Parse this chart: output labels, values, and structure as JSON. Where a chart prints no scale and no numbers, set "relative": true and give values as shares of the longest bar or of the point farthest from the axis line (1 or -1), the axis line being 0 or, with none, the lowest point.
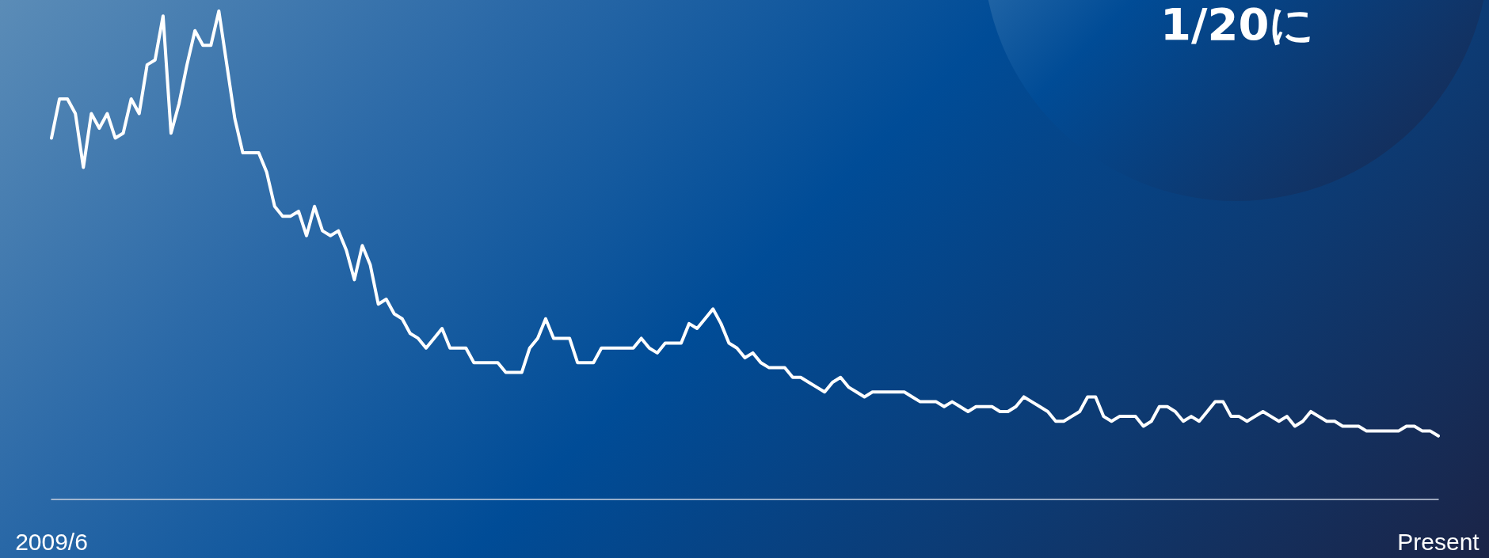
{
  "chart_data": {
    "type": "line",
    "relative": true,
    "annotations": [
      "1/20に"
    ],
    "categories": [
      "2009/6",
      null,
      null,
      null,
      null,
      null,
      null,
      null,
      null,
      null,
      null,
      null,
      null,
      null,
      null,
      null,
      null,
      null,
      null,
      null,
      null,
      null,
      null,
      null,
      null,
      null,
      null,
      null,
      null,
      null,
      null,
      null,
      null,
      null,
      null,
      null,
      null,
      null,
      null,
      null,
      null,
      null,
      null,
      null,
      null,
      null,
      null,
      null,
      null,
      null,
      null,
      null,
      null,
      null,
      null,
      null,
      null,
      null,
      null,
      null,
      null,
      null,
      null,
      null,
      null,
      null,
      null,
      null,
      null,
      null,
      null,
      null,
      null,
      null,
      null,
      null,
      null,
      null,
      null,
      null,
      null,
      null,
      null,
      null,
      null,
      null,
      null,
      null,
      null,
      null,
      null,
      null,
      null,
      null,
      null,
      null,
      null,
      null,
      null,
      null,
      null,
      null,
      null,
      null,
      null,
      null,
      null,
      null,
      null,
      null,
      null,
      null,
      null,
      null,
      null,
      null,
      null,
      null,
      null,
      null,
      null,
      null,
      null,
      null,
      null,
      null,
      null,
      null,
      null,
      null,
      null,
      null,
      null,
      null,
      null,
      null,
      null,
      null,
      null,
      null,
      null,
      null,
      null,
      null,
      null,
      null,
      null,
      null,
      null,
      null,
      null,
      null,
      null,
      null,
      null,
      null,
      null,
      null,
      null,
      null,
      null,
      null,
      null,
      null,
      null,
      null,
      null,
      null,
      null,
      null,
      null,
      null,
      null,
      null,
      "Present"
    ],
    "series": [
      {
        "color": "#ffffff",
        "values": [
          0.74,
          0.82,
          0.82,
          0.79,
          0.68,
          0.79,
          0.76,
          0.79,
          0.74,
          0.75,
          0.82,
          0.79,
          0.89,
          0.9,
          0.99,
          0.75,
          0.81,
          0.89,
          0.96,
          0.93,
          0.93,
          1,
          0.89,
          0.78,
          0.71,
          0.71,
          0.71,
          0.67,
          0.6,
          0.58,
          0.58,
          0.59,
          0.54,
          0.6,
          0.55,
          0.54,
          0.55,
          0.51,
          0.45,
          0.52,
          0.48,
          0.4,
          0.41,
          0.38,
          0.37,
          0.34,
          0.33,
          0.31,
          0.33,
          0.35,
          0.31,
          0.31,
          0.31,
          0.28,
          0.28,
          0.28,
          0.28,
          0.26,
          0.26,
          0.26,
          0.31,
          0.33,
          0.37,
          0.33,
          0.33,
          0.33,
          0.28,
          0.28,
          0.28,
          0.31,
          0.31,
          0.31,
          0.31,
          0.31,
          0.33,
          0.31,
          0.3,
          0.32,
          0.32,
          0.32,
          0.36,
          0.35,
          0.37,
          0.39,
          0.36,
          0.32,
          0.31,
          0.29,
          0.3,
          0.28,
          0.27,
          0.27,
          0.27,
          0.25,
          0.25,
          0.24,
          0.23,
          0.22,
          0.24,
          0.25,
          0.23,
          0.22,
          0.21,
          0.22,
          0.22,
          0.22,
          0.22,
          0.22,
          0.21,
          0.2,
          0.2,
          0.2,
          0.19,
          0.2,
          0.19,
          0.18,
          0.19,
          0.19,
          0.19,
          0.18,
          0.18,
          0.19,
          0.21,
          0.2,
          0.19,
          0.18,
          0.16,
          0.16,
          0.17,
          0.18,
          0.21,
          0.21,
          0.17,
          0.16,
          0.17,
          0.17,
          0.17,
          0.15,
          0.16,
          0.19,
          0.19,
          0.18,
          0.16,
          0.17,
          0.16,
          0.18,
          0.2,
          0.2,
          0.17,
          0.17,
          0.16,
          0.17,
          0.18,
          0.17,
          0.16,
          0.17,
          0.15,
          0.16,
          0.18,
          0.17,
          0.16,
          0.16,
          0.15,
          0.15,
          0.15,
          0.14,
          0.14,
          0.14,
          0.14,
          0.14,
          0.15,
          0.15,
          0.14,
          0.14,
          0.13
        ]
      }
    ],
    "grid": false,
    "marker": "none",
    "line_style": "solid"
  }
}
